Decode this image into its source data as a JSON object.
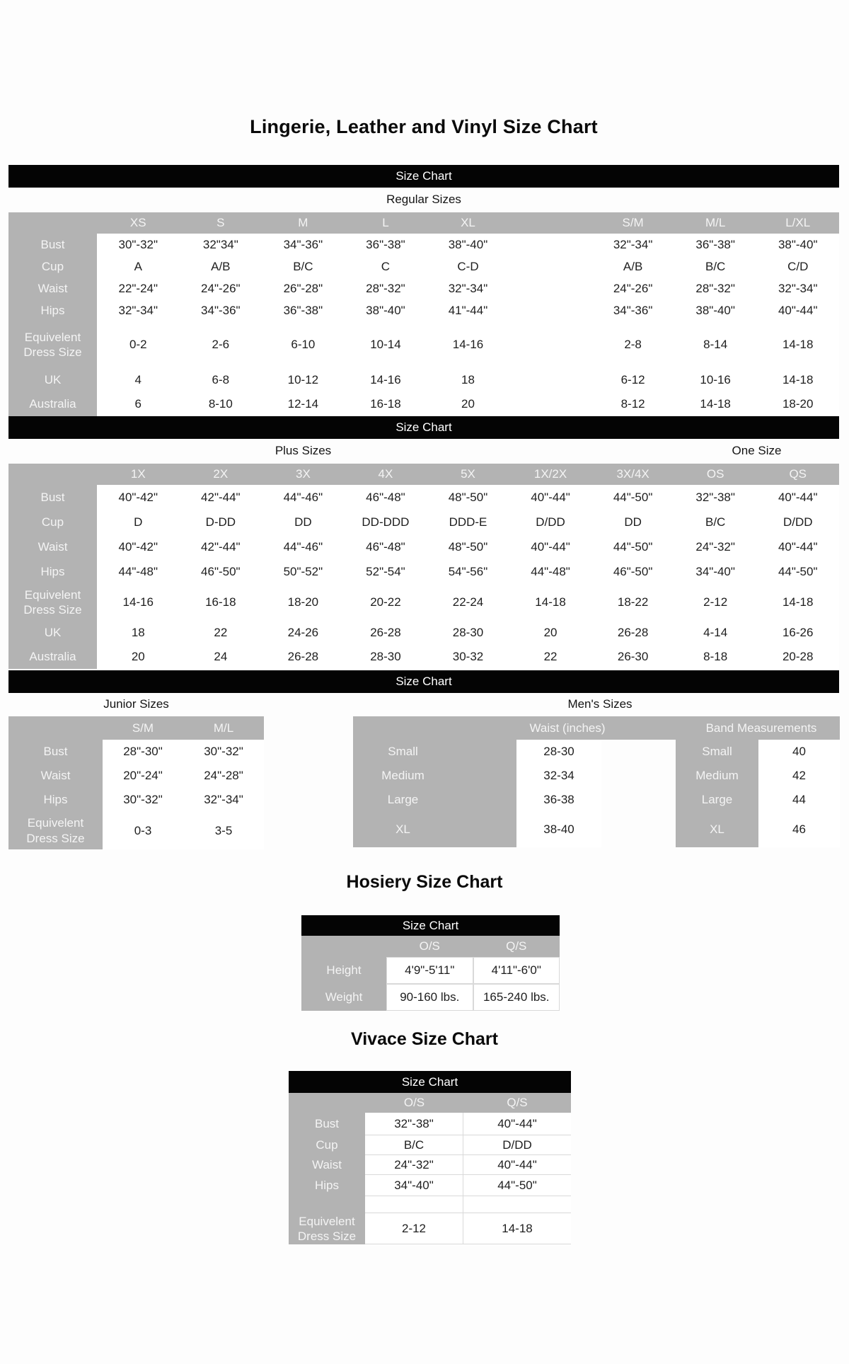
{
  "page": {
    "title": "Lingerie, Leather and Vinyl Size Chart"
  },
  "bars": {
    "label": "Size Chart"
  },
  "colors": {
    "bar_bg": "#000000",
    "bar_text": "#ffffff",
    "header_bg": "#b3b3b3",
    "header_text": "#f4f4f4",
    "data_text": "#1e1e1e",
    "cell_border": "#d9d9d9"
  },
  "regular": {
    "section_label": "Regular Sizes",
    "columns": [
      "XS",
      "S",
      "M",
      "L",
      "XL",
      "",
      "S/M",
      "M/L",
      "L/XL"
    ],
    "rows": [
      {
        "label": "Bust",
        "values": [
          "30\"-32\"",
          "32\"34\"",
          "34\"-36\"",
          "36\"-38\"",
          "38\"-40\"",
          "",
          "32\"-34\"",
          "36\"-38\"",
          "38\"-40\""
        ]
      },
      {
        "label": "Cup",
        "values": [
          "A",
          "A/B",
          "B/C",
          "C",
          "C-D",
          "",
          "A/B",
          "B/C",
          "C/D"
        ]
      },
      {
        "label": "Waist",
        "values": [
          "22\"-24\"",
          "24\"-26\"",
          "26\"-28\"",
          "28\"-32\"",
          "32\"-34\"",
          "",
          "24\"-26\"",
          "28\"-32\"",
          "32\"-34\""
        ]
      },
      {
        "label": "Hips",
        "values": [
          "32\"-34\"",
          "34\"-36\"",
          "36\"-38\"",
          "38\"-40\"",
          "41\"-44\"",
          "",
          "34\"-36\"",
          "38\"-40\"",
          "40\"-44\""
        ]
      },
      {
        "label": "Equivelent Dress Size",
        "values": [
          "0-2",
          "2-6",
          "6-10",
          "10-14",
          "14-16",
          "",
          "2-8",
          "8-14",
          "14-18"
        ]
      },
      {
        "label": "UK",
        "values": [
          "4",
          "6-8",
          "10-12",
          "14-16",
          "18",
          "",
          "6-12",
          "10-16",
          "14-18"
        ]
      },
      {
        "label": "Australia",
        "values": [
          "6",
          "8-10",
          "12-14",
          "16-18",
          "20",
          "",
          "8-12",
          "14-18",
          "18-20"
        ]
      }
    ]
  },
  "plus": {
    "section_label": "Plus Sizes",
    "one_size_label": "One Size",
    "columns": [
      "1X",
      "2X",
      "3X",
      "4X",
      "5X",
      "1X/2X",
      "3X/4X",
      "OS",
      "QS"
    ],
    "rows": [
      {
        "label": "Bust",
        "values": [
          "40\"-42\"",
          "42\"-44\"",
          "44\"-46\"",
          "46\"-48\"",
          "48\"-50\"",
          "40\"-44\"",
          "44\"-50\"",
          "32\"-38\"",
          "40\"-44\""
        ]
      },
      {
        "label": "Cup",
        "values": [
          "D",
          "D-DD",
          "DD",
          "DD-DDD",
          "DDD-E",
          "D/DD",
          "DD",
          "B/C",
          "D/DD"
        ]
      },
      {
        "label": "Waist",
        "values": [
          "40\"-42\"",
          "42\"-44\"",
          "44\"-46\"",
          "46\"-48\"",
          "48\"-50\"",
          "40\"-44\"",
          "44\"-50\"",
          "24\"-32\"",
          "40\"-44\""
        ]
      },
      {
        "label": "Hips",
        "values": [
          "44\"-48\"",
          "46\"-50\"",
          "50\"-52\"",
          "52\"-54\"",
          "54\"-56\"",
          "44\"-48\"",
          "46\"-50\"",
          "34\"-40\"",
          "44\"-50\""
        ]
      },
      {
        "label": "Equivelent Dress Size",
        "values": [
          "14-16",
          "16-18",
          "18-20",
          "20-22",
          "22-24",
          "14-18",
          "18-22",
          "2-12",
          "14-18"
        ]
      },
      {
        "label": "UK",
        "values": [
          "18",
          "22",
          "24-26",
          "26-28",
          "28-30",
          "20",
          "26-28",
          "4-14",
          "16-26"
        ]
      },
      {
        "label": "Australia",
        "values": [
          "20",
          "24",
          "26-28",
          "28-30",
          "30-32",
          "22",
          "26-30",
          "8-18",
          "20-28"
        ]
      }
    ]
  },
  "junior": {
    "section_label": "Junior Sizes",
    "columns": [
      "S/M",
      "M/L"
    ],
    "rows": [
      {
        "label": "Bust",
        "values": [
          "28\"-30\"",
          "30\"-32\""
        ]
      },
      {
        "label": "Waist",
        "values": [
          "20\"-24\"",
          "24\"-28\""
        ]
      },
      {
        "label": "Hips",
        "values": [
          "30\"-32\"",
          "32\"-34\""
        ]
      },
      {
        "label": "Equivelent Dress Size",
        "values": [
          "0-3",
          "3-5"
        ]
      }
    ]
  },
  "mens": {
    "section_label": "Men's Sizes",
    "waist_header": "Waist (inches)",
    "band_header": "Band Measurements",
    "waist": {
      "rows": [
        {
          "label": "Small",
          "values": [
            "28-30"
          ]
        },
        {
          "label": "Medium",
          "values": [
            "32-34"
          ]
        },
        {
          "label": "Large",
          "values": [
            "36-38"
          ]
        },
        {
          "label": "XL",
          "values": [
            "38-40"
          ]
        }
      ]
    },
    "band": {
      "rows": [
        {
          "label": "Small",
          "values": [
            "40"
          ]
        },
        {
          "label": "Medium",
          "values": [
            "42"
          ]
        },
        {
          "label": "Large",
          "values": [
            "44"
          ]
        },
        {
          "label": "XL",
          "values": [
            "46"
          ]
        }
      ]
    }
  },
  "hosiery": {
    "title": "Hosiery Size Chart",
    "columns": [
      "O/S",
      "Q/S"
    ],
    "rows": [
      {
        "label": "Height",
        "values": [
          "4'9\"-5'11\"",
          "4'11\"-6'0\""
        ]
      },
      {
        "label": "Weight",
        "values": [
          "90-160 lbs.",
          "165-240 lbs."
        ]
      }
    ]
  },
  "vivace": {
    "title": "Vivace Size Chart",
    "columns": [
      "O/S",
      "Q/S"
    ],
    "rows": [
      {
        "label": "Bust",
        "values": [
          "32\"-38\"",
          "40\"-44\""
        ]
      },
      {
        "label": "Cup",
        "values": [
          "B/C",
          "D/DD"
        ]
      },
      {
        "label": "Waist",
        "values": [
          "24\"-32\"",
          "40\"-44\""
        ]
      },
      {
        "label": "Hips",
        "values": [
          "34\"-40\"",
          "44\"-50\""
        ]
      },
      {
        "label": "",
        "values": [
          "",
          ""
        ]
      },
      {
        "label": "Equivelent Dress Size",
        "values": [
          "2-12",
          "14-18"
        ]
      }
    ]
  }
}
